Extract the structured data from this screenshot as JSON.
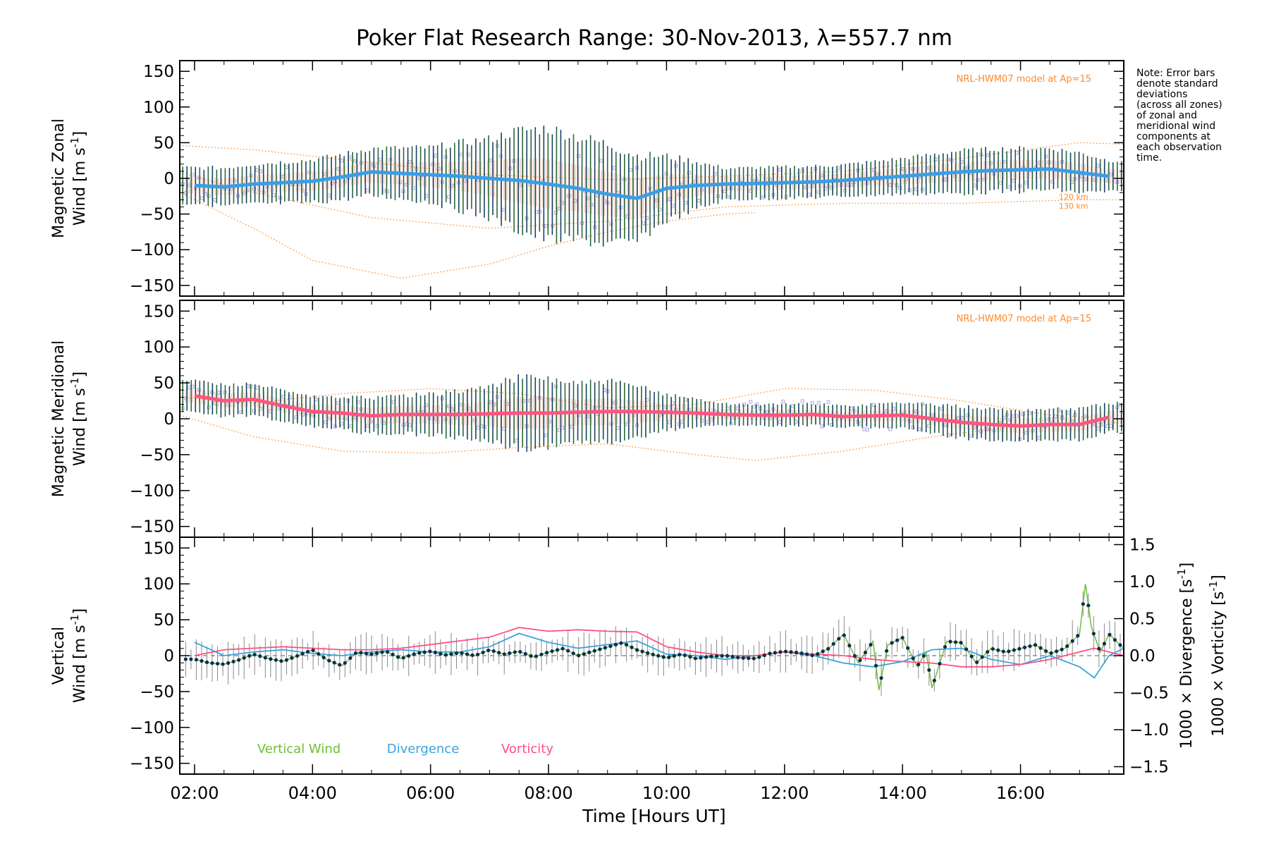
{
  "chart_data": [
    {
      "type": "line",
      "panel": "zonal",
      "title": "Poker Flat Research Range: 30-Nov-2013, λ=557.7 nm",
      "ylabel_line1": "Magnetic Zonal",
      "ylabel_line2": "Wind [m s",
      "ylabel_sup": "-1",
      "ylabel_end": "]",
      "ylim": [
        -165,
        165
      ],
      "yticks": [
        "150",
        "100",
        "50",
        "0",
        "−50",
        "−100",
        "−150"
      ],
      "ytick_values": [
        150,
        100,
        50,
        0,
        -50,
        -100,
        -150
      ],
      "model_label": "NRL-HWM07 model at Ap=15",
      "altitude_labels": [
        "120 km",
        "130 km"
      ],
      "note_lines": [
        "Note: Error bars",
        "denote standard",
        "deviations",
        "(across all zones)",
        "of zonal and",
        "meridional wind",
        "components at",
        "each observation",
        "time."
      ],
      "mean_series": {
        "name": "Mean zonal wind",
        "color": "#3a9ee6",
        "x": [
          2.0,
          2.5,
          3.0,
          3.5,
          4.0,
          4.5,
          5.0,
          5.5,
          6.0,
          6.5,
          7.0,
          7.5,
          8.0,
          8.5,
          9.0,
          9.5,
          10.0,
          10.5,
          11.0,
          11.5,
          12.0,
          12.5,
          13.0,
          13.5,
          14.0,
          14.5,
          15.0,
          15.5,
          16.0,
          16.5,
          17.0,
          17.5
        ],
        "y": [
          -10,
          -12,
          -8,
          -6,
          -4,
          2,
          9,
          7,
          5,
          3,
          0,
          -3,
          -8,
          -14,
          -22,
          -28,
          -14,
          -10,
          -8,
          -7,
          -6,
          -5,
          -3,
          0,
          3,
          6,
          9,
          11,
          12,
          13,
          8,
          3
        ]
      },
      "error_bar_halfwidth": {
        "x": [
          2.0,
          3.0,
          4.0,
          5.0,
          6.0,
          7.0,
          7.5,
          8.0,
          8.5,
          9.0,
          9.5,
          10.0,
          11.0,
          12.0,
          13.0,
          14.0,
          15.0,
          16.0,
          17.0,
          17.5
        ],
        "y": [
          25,
          28,
          30,
          33,
          38,
          55,
          70,
          78,
          72,
          70,
          60,
          45,
          22,
          22,
          22,
          25,
          30,
          30,
          28,
          22
        ]
      },
      "model_curves": [
        {
          "name": "HWM07 upper",
          "x": [
            1.75,
            3,
            5,
            7,
            9,
            11,
            13,
            15,
            17,
            17.75
          ],
          "y": [
            46,
            40,
            22,
            5,
            -2,
            3,
            10,
            28,
            50,
            48
          ]
        },
        {
          "name": "HWM07 mid",
          "x": [
            1.75,
            3,
            5,
            7,
            9,
            11,
            13,
            15,
            17,
            17.75
          ],
          "y": [
            8,
            -20,
            -55,
            -70,
            -60,
            -40,
            -35,
            -35,
            -30,
            -30
          ]
        },
        {
          "name": "HWM07 low",
          "x": [
            1.75,
            3,
            4,
            5.5,
            7,
            8,
            9,
            10,
            11,
            11.5
          ],
          "y": [
            -20,
            -70,
            -115,
            -140,
            -120,
            -95,
            -75,
            -60,
            -50,
            -48
          ]
        }
      ]
    },
    {
      "type": "line",
      "panel": "meridional",
      "ylabel_line1": "Magnetic Meridional",
      "ylabel_line2": "Wind [m s",
      "ylabel_sup": "-1",
      "ylabel_end": "]",
      "ylim": [
        -165,
        165
      ],
      "yticks": [
        "150",
        "100",
        "50",
        "0",
        "−50",
        "−100",
        "−150"
      ],
      "ytick_values": [
        150,
        100,
        50,
        0,
        -50,
        -100,
        -150
      ],
      "model_label": "NRL-HWM07 model at Ap=15",
      "mean_series": {
        "name": "Mean meridional wind",
        "color": "#ff5580",
        "x": [
          2.0,
          2.5,
          3.0,
          3.5,
          4.0,
          4.5,
          5.0,
          5.5,
          6.0,
          6.5,
          7.0,
          7.5,
          8.0,
          8.5,
          9.0,
          9.5,
          10.0,
          10.5,
          11.0,
          11.5,
          12.0,
          12.5,
          13.0,
          13.5,
          14.0,
          14.5,
          15.0,
          15.5,
          16.0,
          16.5,
          17.0,
          17.5
        ],
        "y": [
          32,
          25,
          27,
          18,
          10,
          8,
          4,
          6,
          6,
          6,
          7,
          8,
          8,
          9,
          10,
          10,
          9,
          8,
          6,
          5,
          5,
          6,
          3,
          4,
          5,
          0,
          -5,
          -8,
          -10,
          -8,
          -8,
          2
        ]
      },
      "error_bar_halfwidth": {
        "x": [
          2.0,
          3.0,
          4.0,
          5.0,
          6.0,
          7.0,
          7.5,
          8.0,
          8.5,
          9.0,
          9.5,
          10.0,
          11.0,
          12.0,
          13.0,
          14.0,
          15.0,
          16.0,
          17.0,
          17.5
        ],
        "y": [
          22,
          22,
          20,
          25,
          28,
          38,
          50,
          48,
          40,
          42,
          35,
          25,
          15,
          15,
          15,
          18,
          22,
          22,
          22,
          20
        ]
      },
      "model_curves": [
        {
          "name": "HWM07 upper",
          "x": [
            1.75,
            3,
            4.5,
            6,
            7.5,
            9,
            10.5,
            12,
            13.5,
            15,
            16.5,
            17.75
          ],
          "y": [
            30,
            22,
            35,
            42,
            35,
            15,
            20,
            42,
            40,
            25,
            5,
            0
          ]
        },
        {
          "name": "HWM07 lower",
          "x": [
            1.75,
            3,
            4.5,
            6,
            7.5,
            9,
            10.5,
            11.5,
            13,
            14.5,
            16,
            17.75
          ],
          "y": [
            5,
            -25,
            -45,
            -48,
            -40,
            -35,
            -50,
            -58,
            -45,
            -25,
            -10,
            -5
          ]
        }
      ]
    },
    {
      "type": "line",
      "panel": "vertical",
      "ylabel_line1": "Vertical",
      "ylabel_line2": "Wind [m s",
      "ylabel_sup": "-1",
      "ylabel_end": "]",
      "ylim": [
        -165,
        165
      ],
      "yticks": [
        "150",
        "100",
        "50",
        "0",
        "−50",
        "−100",
        "−150"
      ],
      "ytick_values": [
        150,
        100,
        50,
        0,
        -50,
        -100,
        -150
      ],
      "right_axis": {
        "ylim": [
          -1.6,
          1.6
        ],
        "ticks": [
          "1.5",
          "1.0",
          "0.5",
          "0.0",
          "−0.5",
          "−1.0",
          "−1.5"
        ],
        "tick_values": [
          1.5,
          1.0,
          0.5,
          0.0,
          -0.5,
          -1.0,
          -1.5
        ],
        "label_div": "1000 × Divergence [s",
        "label_vor": "1000 × Vorticity [s",
        "label_sup": "-1",
        "label_end": "]"
      },
      "legend": [
        "Vertical Wind",
        "Divergence",
        "Vorticity"
      ],
      "series": [
        {
          "name": "Vertical Wind",
          "color": "#6fbf3a",
          "x": [
            2.0,
            2.25,
            2.5,
            2.75,
            3.0,
            3.25,
            3.5,
            3.75,
            4.0,
            4.25,
            4.5,
            4.75,
            5.0,
            5.25,
            5.5,
            5.75,
            6.0,
            6.25,
            6.5,
            6.75,
            7.0,
            7.25,
            7.5,
            7.75,
            8.0,
            8.25,
            8.5,
            8.75,
            9.0,
            9.25,
            9.5,
            9.75,
            10.0,
            10.25,
            10.5,
            10.75,
            11.0,
            11.25,
            11.5,
            11.75,
            12.0,
            12.25,
            12.5,
            12.75,
            13.0,
            13.25,
            13.5,
            13.6,
            13.75,
            14.0,
            14.25,
            14.4,
            14.5,
            14.75,
            15.0,
            15.25,
            15.5,
            15.75,
            16.0,
            16.25,
            16.5,
            16.75,
            17.0,
            17.1,
            17.2,
            17.35,
            17.5,
            17.75
          ],
          "y": [
            -5,
            -10,
            -12,
            -6,
            2,
            -4,
            -8,
            0,
            8,
            -6,
            -14,
            5,
            2,
            6,
            -4,
            3,
            6,
            1,
            4,
            0,
            8,
            2,
            6,
            -2,
            5,
            10,
            0,
            6,
            12,
            18,
            8,
            2,
            -3,
            2,
            -4,
            -1,
            0,
            -3,
            -4,
            3,
            6,
            4,
            0,
            10,
            30,
            -10,
            20,
            -48,
            15,
            25,
            -15,
            5,
            -45,
            20,
            18,
            -10,
            10,
            5,
            10,
            15,
            3,
            10,
            30,
            100,
            40,
            5,
            30,
            10
          ]
        },
        {
          "name": "Divergence",
          "color": "#3aa3dc",
          "x": [
            2.0,
            2.5,
            3.0,
            3.5,
            4.0,
            4.5,
            5.0,
            5.5,
            6.0,
            6.5,
            7.0,
            7.5,
            8.0,
            8.5,
            9.0,
            9.5,
            10.0,
            10.5,
            11.0,
            11.5,
            12.0,
            12.5,
            13.0,
            13.5,
            14.0,
            14.5,
            15.0,
            15.5,
            16.0,
            16.5,
            17.0,
            17.25,
            17.5,
            17.75
          ],
          "y": [
            0.18,
            0.0,
            0.05,
            0.08,
            0.03,
            0.0,
            0.05,
            0.08,
            0.05,
            0.05,
            0.12,
            0.3,
            0.18,
            0.1,
            0.15,
            0.2,
            0.02,
            0.0,
            -0.05,
            0.0,
            0.05,
            0.0,
            -0.1,
            -0.15,
            -0.08,
            0.08,
            0.1,
            -0.05,
            -0.12,
            0.0,
            -0.15,
            -0.3,
            0.0,
            0.1
          ]
        },
        {
          "name": "Vorticity",
          "color": "#ff4f88",
          "x": [
            2.0,
            2.5,
            3.0,
            3.5,
            4.0,
            4.5,
            5.0,
            5.5,
            6.0,
            6.5,
            7.0,
            7.5,
            8.0,
            8.5,
            9.0,
            9.5,
            10.0,
            10.5,
            11.0,
            11.5,
            12.0,
            12.5,
            13.0,
            13.5,
            14.0,
            14.5,
            15.0,
            15.5,
            16.0,
            16.5,
            17.0,
            17.25,
            17.5,
            17.75
          ],
          "y": [
            0.0,
            0.08,
            0.1,
            0.12,
            0.1,
            0.08,
            0.08,
            0.1,
            0.15,
            0.2,
            0.25,
            0.38,
            0.33,
            0.35,
            0.33,
            0.32,
            0.12,
            0.05,
            0.0,
            0.0,
            0.05,
            0.02,
            0.0,
            -0.05,
            -0.08,
            -0.1,
            -0.15,
            -0.15,
            -0.12,
            -0.05,
            0.05,
            0.1,
            0.05,
            0.0
          ]
        }
      ]
    }
  ],
  "x_axis": {
    "label": "Time [Hours UT]",
    "range": [
      1.75,
      17.75
    ],
    "ticks": [
      "02:00",
      "04:00",
      "06:00",
      "08:00",
      "10:00",
      "12:00",
      "14:00",
      "16:00"
    ],
    "tick_values": [
      2,
      4,
      6,
      8,
      10,
      12,
      14,
      16
    ]
  },
  "colors": {
    "zonal_mean": "#3a9ee6",
    "meridional_mean": "#ff5580",
    "error_bar": "#1b3f66",
    "error_bar_alt": "#2a6a35",
    "model": "#ff8a2b",
    "scatter": "#b8b3e8",
    "vertical": "#6fbf3a",
    "divergence": "#3aa3dc",
    "vorticity": "#ff4f88",
    "points": "#0d2f4a"
  }
}
